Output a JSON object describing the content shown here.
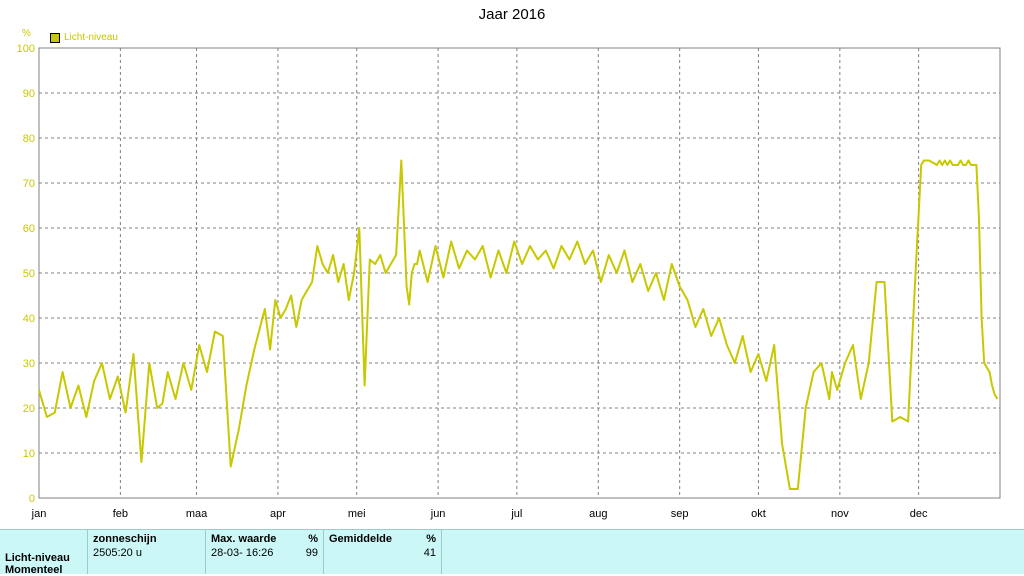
{
  "title": "Jaar 2016",
  "colors": {
    "series": "#c8c800",
    "axis_text_y": "#c8c800",
    "grid": "#808080",
    "footer_bg": "#ccf7f7"
  },
  "chart_data": {
    "type": "line",
    "title": "Jaar 2016",
    "ylabel": "%",
    "ylim": [
      0,
      100
    ],
    "yticks": [
      "0",
      "10",
      "20",
      "30",
      "40",
      "50",
      "60",
      "70",
      "80",
      "90",
      "100"
    ],
    "xticks": [
      "jan",
      "feb",
      "maa",
      "apr",
      "mei",
      "jun",
      "jul",
      "aug",
      "sep",
      "okt",
      "nov",
      "dec"
    ],
    "legend": "top-left",
    "grid": true,
    "series": [
      {
        "name": "Licht-niveau",
        "x": [
          0,
          3,
          6,
          9,
          12,
          15,
          18,
          21,
          24,
          27,
          30,
          33,
          36,
          39,
          42,
          45,
          47,
          49,
          52,
          55,
          58,
          61,
          64,
          67,
          70,
          73,
          76,
          79,
          82,
          86,
          88,
          90,
          92,
          94,
          96,
          98,
          100,
          102,
          104,
          106,
          108,
          110,
          112,
          114,
          116,
          118,
          120,
          122,
          124,
          126,
          128,
          130,
          132,
          134,
          136,
          138,
          140,
          141,
          142,
          143,
          144,
          145,
          148,
          151,
          154,
          157,
          160,
          163,
          166,
          169,
          172,
          175,
          178,
          181,
          184,
          187,
          190,
          193,
          196,
          199,
          202,
          205,
          208,
          211,
          214,
          217,
          220,
          223,
          226,
          229,
          232,
          235,
          238,
          241,
          244,
          247,
          250,
          253,
          256,
          259,
          262,
          265,
          268,
          271,
          274,
          277,
          280,
          283,
          286,
          289,
          292,
          295,
          298,
          301,
          302,
          304,
          305,
          307,
          310,
          313,
          316,
          319,
          322,
          325,
          328,
          331,
          334,
          336,
          337,
          339,
          342,
          343,
          344,
          345,
          346,
          347,
          348,
          349,
          350,
          351,
          352,
          353,
          354,
          355,
          356,
          357,
          358,
          359,
          360,
          362,
          363,
          364,
          365
        ],
        "values": [
          24,
          18,
          19,
          28,
          20,
          25,
          18,
          26,
          30,
          22,
          27,
          19,
          32,
          8,
          30,
          20,
          21,
          28,
          22,
          30,
          24,
          34,
          28,
          37,
          36,
          7,
          15,
          25,
          33,
          42,
          33,
          44,
          40,
          42,
          45,
          38,
          44,
          46,
          48,
          56,
          52,
          50,
          54,
          48,
          52,
          44,
          50,
          60,
          25,
          53,
          52,
          54,
          50,
          52,
          54,
          75,
          47,
          43,
          50,
          52,
          52,
          55,
          48,
          56,
          49,
          57,
          51,
          55,
          53,
          56,
          49,
          55,
          50,
          57,
          52,
          56,
          53,
          55,
          51,
          56,
          53,
          57,
          52,
          55,
          48,
          54,
          50,
          55,
          48,
          52,
          46,
          50,
          44,
          52,
          47,
          44,
          38,
          42,
          36,
          40,
          34,
          30,
          36,
          28,
          32,
          26,
          34,
          12,
          2,
          2,
          20,
          28,
          30,
          22,
          28,
          24,
          26,
          30,
          34,
          22,
          30,
          48,
          48,
          17,
          18,
          17,
          52,
          74,
          75,
          75,
          74,
          75,
          74,
          75,
          74,
          75,
          74,
          74,
          74,
          75,
          74,
          74,
          75,
          74,
          74,
          74,
          62,
          40,
          30,
          28,
          25,
          23,
          22
        ]
      }
    ]
  },
  "legend": {
    "label": "Licht-niveau"
  },
  "footer": {
    "row_label": "Licht-niveau",
    "row_label2": "Momenteel",
    "zonneschijn": {
      "header": "zonneschijn",
      "value": "2505:20 u"
    },
    "max": {
      "header": "Max. waarde",
      "unit": "%",
      "date": "28-03-  16:26",
      "value": "99"
    },
    "avg": {
      "header": "Gemiddelde",
      "unit": "%",
      "value": "41"
    }
  }
}
